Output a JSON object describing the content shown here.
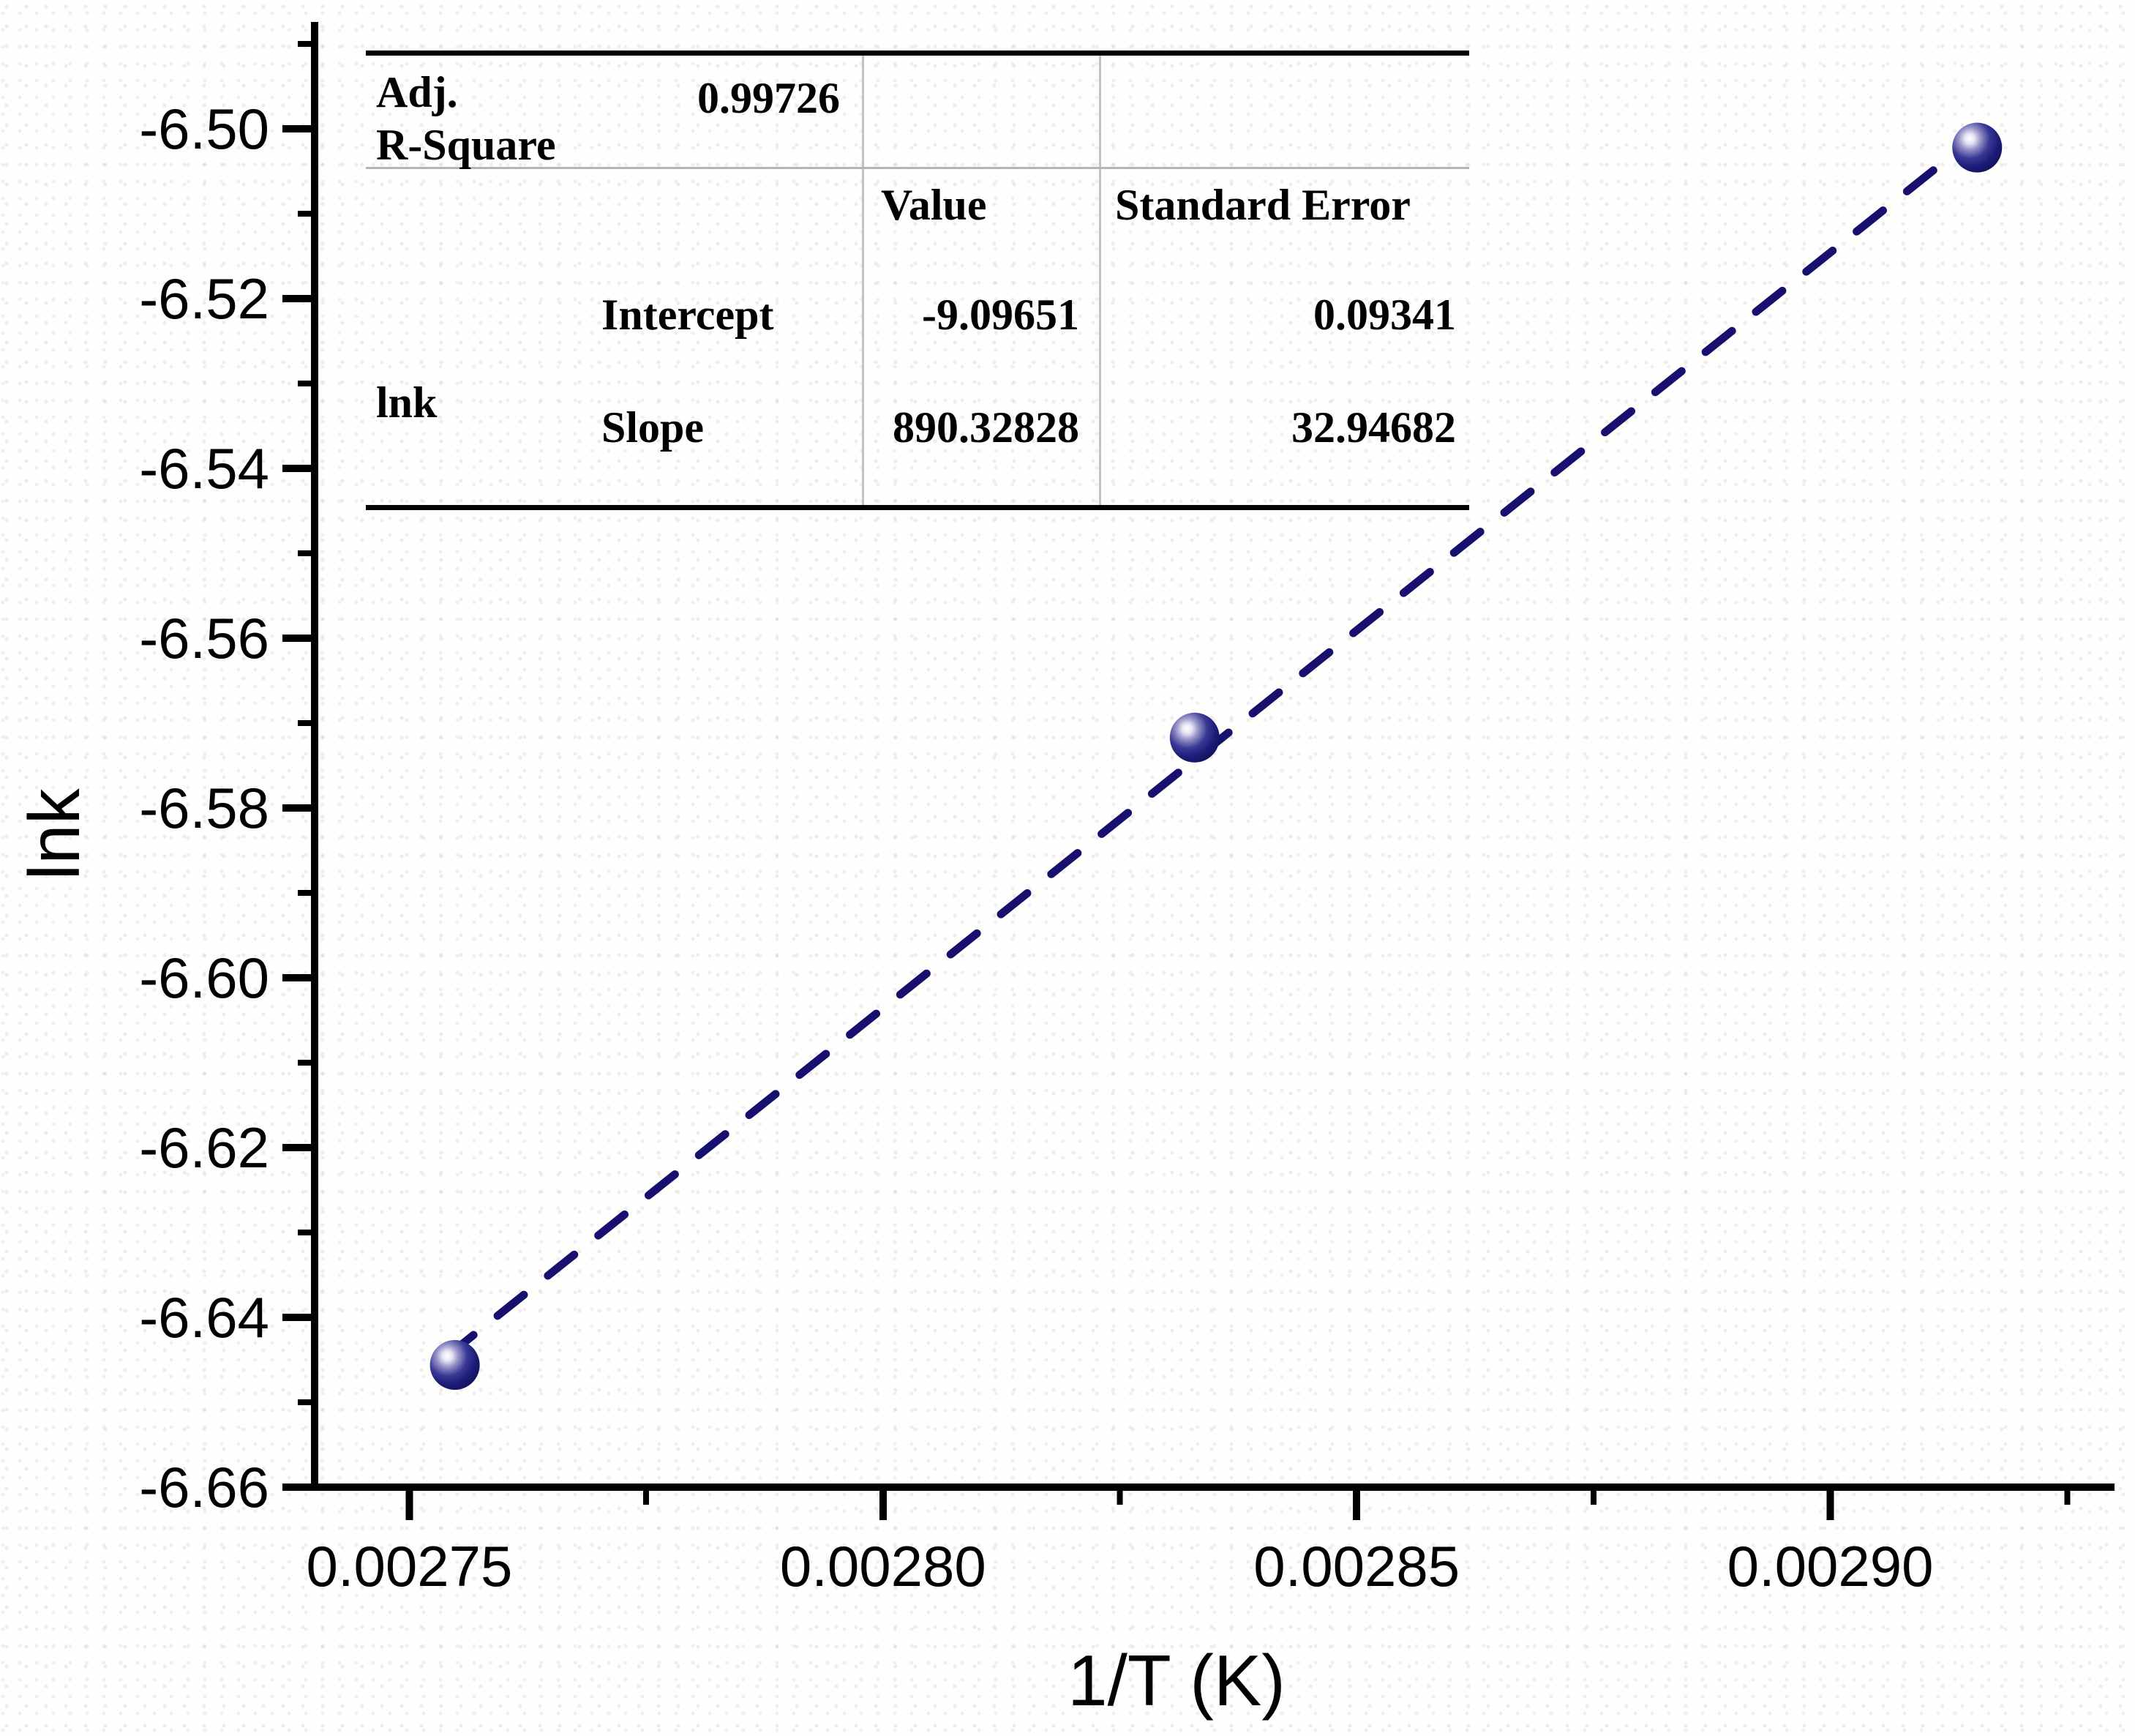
{
  "chart_data": {
    "type": "scatter",
    "title": "",
    "xlabel": "1/T (K)",
    "ylabel": "lnk",
    "xlim": [
      0.00274,
      0.00293
    ],
    "ylim": [
      -6.66,
      -6.4874
    ],
    "grid": false,
    "x_major_ticks": [
      0.00275,
      0.0028,
      0.00285,
      0.0029
    ],
    "x_tick_labels": [
      "0.00275",
      "0.00280",
      "0.00285",
      "0.00290"
    ],
    "x_minor_ticks": [
      0.002775,
      0.002825,
      0.002875,
      0.002925
    ],
    "y_major_ticks": [
      -6.5,
      -6.52,
      -6.54,
      -6.56,
      -6.58,
      -6.6,
      -6.62,
      -6.64,
      -6.66
    ],
    "y_tick_labels": [
      "-6.50",
      "-6.52",
      "-6.54",
      "-6.56",
      "-6.58",
      "-6.60",
      "-6.62",
      "-6.64",
      "-6.66"
    ],
    "y_minor_ticks": [
      -6.49,
      -6.51,
      -6.53,
      -6.55,
      -6.57,
      -6.59,
      -6.61,
      -6.63,
      -6.65
    ],
    "series": [
      {
        "name": "lnk",
        "type": "scatter",
        "marker": "sphere-3d",
        "color": "#1a1a70",
        "marker_radius": 34,
        "points": [
          {
            "x": 0.0027548,
            "y": -6.6456
          },
          {
            "x": 0.0028329,
            "y": -6.5717
          },
          {
            "x": 0.0029155,
            "y": -6.5022
          }
        ]
      },
      {
        "name": "linear-fit",
        "type": "line",
        "line_style": "dashed",
        "color": "#18106e",
        "x_range": [
          0.002754,
          0.002917
        ]
      }
    ],
    "fit": {
      "adj_r_square": 0.99726,
      "intercept": -9.09651,
      "intercept_std_error": 0.09341,
      "slope": 890.32828,
      "slope_std_error": 32.94682
    }
  },
  "inset_table": {
    "adj_label_line1": "Adj.",
    "adj_label_line2": "R-Square",
    "adj_value": "0.99726",
    "col_value": "Value",
    "col_std_error": "Standard Error",
    "group_label": "lnk",
    "rows": [
      {
        "param": "Intercept",
        "value": "-9.09651",
        "std_error": "0.09341"
      },
      {
        "param": "Slope",
        "value": "890.32828",
        "std_error": "32.94682"
      }
    ]
  }
}
